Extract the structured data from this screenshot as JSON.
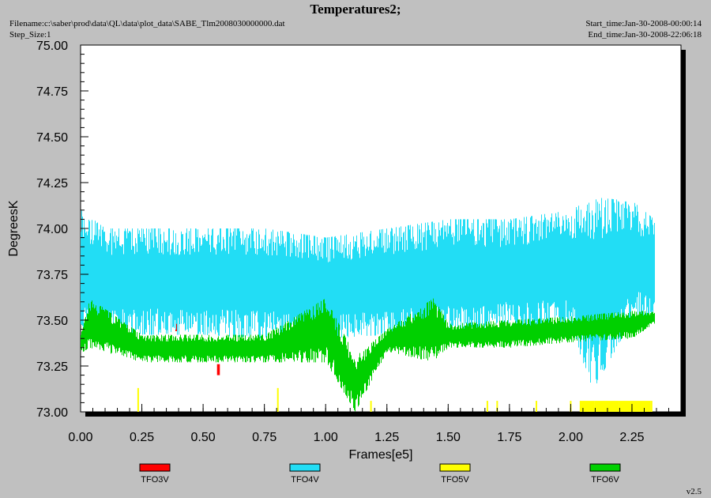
{
  "header": {
    "title": "Temperatures2;",
    "filename": "Filename:c:\\saber\\prod\\data\\QL\\data\\plot_data\\SABE_Tlm2008030000000.dat",
    "step_size": "Step_Size:1",
    "start_time": "Start_time:Jan-30-2008-00:00:14",
    "end_time": "End_time:Jan-30-2008-22:06:18"
  },
  "footer": {
    "version": "v2.5"
  },
  "colors": {
    "plot_background": "#ffffff",
    "page_background": "#c0c0c0",
    "TFO3V": "#ff0000",
    "TFO4V": "#22ddf5",
    "TFO5V": "#ffff00",
    "TFO6V": "#00d000"
  },
  "chart_data": {
    "type": "line",
    "title": "Temperatures2;",
    "xlabel": "Frames[e5]",
    "ylabel": "DegreesK",
    "xlim": [
      0.0,
      2.45
    ],
    "ylim": [
      73.0,
      75.0
    ],
    "x_ticks": [
      "0.00",
      "0.25",
      "0.50",
      "0.75",
      "1.00",
      "1.25",
      "1.50",
      "1.75",
      "2.00",
      "2.25"
    ],
    "y_ticks": [
      "73.00",
      "73.25",
      "73.50",
      "73.75",
      "74.00",
      "74.25",
      "74.50",
      "74.75",
      "75.00"
    ],
    "grid": false,
    "legend_position": "bottom",
    "series": [
      {
        "name": "TFO3V",
        "x": [
          0.0,
          0.39,
          0.56,
          0.565
        ],
        "y_min": [
          73.0,
          73.44,
          73.2,
          73.2
        ],
        "y_max": [
          73.0,
          73.48,
          73.26,
          73.26
        ]
      },
      {
        "name": "TFO4V",
        "x": [
          0.0,
          0.1,
          0.25,
          0.5,
          0.75,
          1.0,
          1.25,
          1.5,
          1.75,
          2.0,
          2.09,
          2.25,
          2.34
        ],
        "y_min": [
          73.42,
          73.42,
          73.42,
          73.42,
          73.4,
          73.4,
          73.42,
          73.42,
          73.45,
          73.45,
          73.12,
          73.5,
          73.5
        ],
        "y_max": [
          74.1,
          74.0,
          74.0,
          74.0,
          74.0,
          73.95,
          74.0,
          74.05,
          74.05,
          74.1,
          74.17,
          74.15,
          74.05
        ]
      },
      {
        "name": "TFO5V",
        "x": [
          0.235,
          0.805,
          1.185,
          1.66,
          1.7,
          1.86,
          2.0,
          2.04,
          2.1,
          2.2,
          2.33
        ],
        "y_min": [
          73.0,
          73.0,
          73.0,
          73.0,
          73.0,
          73.0,
          73.0,
          73.0,
          73.0,
          73.0,
          73.0
        ],
        "y_max": [
          73.13,
          73.13,
          73.06,
          73.06,
          73.06,
          73.06,
          73.06,
          73.06,
          73.06,
          73.06,
          73.06
        ]
      },
      {
        "name": "TFO6V",
        "x": [
          0.0,
          0.035,
          0.25,
          0.5,
          0.75,
          1.0,
          1.12,
          1.25,
          1.44,
          1.5,
          1.75,
          2.0,
          2.25,
          2.34
        ],
        "y_min": [
          73.32,
          73.35,
          73.27,
          73.27,
          73.27,
          73.27,
          73.0,
          73.33,
          73.27,
          73.35,
          73.35,
          73.38,
          73.4,
          73.48
        ],
        "y_max": [
          73.42,
          73.62,
          73.42,
          73.42,
          73.42,
          73.62,
          73.3,
          73.45,
          73.62,
          73.48,
          73.5,
          73.52,
          73.55,
          73.55
        ]
      }
    ]
  }
}
